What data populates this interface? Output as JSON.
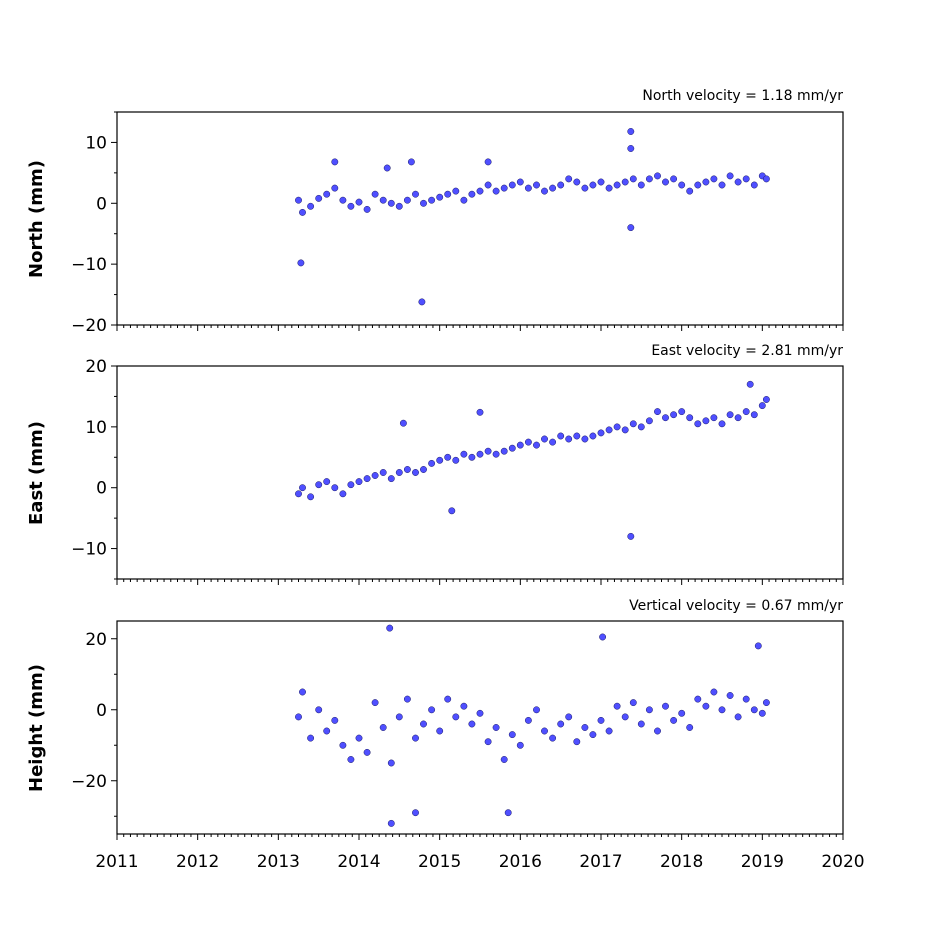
{
  "chart_data": [
    {
      "type": "scatter",
      "title": "North velocity = 1.18 mm/yr",
      "xlabel": "",
      "ylabel": "North (mm)",
      "xlim": [
        2011,
        2020
      ],
      "ylim": [
        -20,
        15
      ],
      "yticks": [
        -20,
        -10,
        0,
        10
      ],
      "xticks": [
        2011,
        2012,
        2013,
        2014,
        2015,
        2016,
        2017,
        2018,
        2019,
        2020
      ],
      "show_xtick_labels": false,
      "grid": false,
      "marker_color": "#4f4fff",
      "series": [
        {
          "x": [
            2013.25,
            2013.3,
            2013.4,
            2013.5,
            2013.6,
            2013.7,
            2013.8,
            2013.9,
            2014.0,
            2014.1,
            2014.2,
            2014.3,
            2014.4,
            2014.5,
            2014.6,
            2014.7,
            2014.8,
            2014.9,
            2015.0,
            2015.1,
            2015.2,
            2015.3,
            2015.4,
            2015.5,
            2015.6,
            2015.7,
            2015.8,
            2015.9,
            2016.0,
            2016.1,
            2016.2,
            2016.3,
            2016.4,
            2016.5,
            2016.6,
            2016.7,
            2016.8,
            2016.9,
            2017.0,
            2017.1,
            2017.2,
            2017.3,
            2017.4,
            2017.5,
            2017.6,
            2017.7,
            2017.8,
            2017.9,
            2018.0,
            2018.1,
            2018.2,
            2018.3,
            2018.4,
            2018.5,
            2018.6,
            2018.7,
            2018.8,
            2018.9,
            2019.0,
            2019.05,
            2013.28,
            2014.78,
            2017.37,
            2017.37,
            2013.7,
            2014.35,
            2014.65,
            2015.6,
            2017.37
          ],
          "y": [
            0.5,
            -1.5,
            -0.5,
            0.8,
            1.5,
            2.5,
            0.5,
            -0.5,
            0.2,
            -1.0,
            1.5,
            0.5,
            0.0,
            -0.5,
            0.5,
            1.5,
            0.0,
            0.5,
            1.0,
            1.5,
            2.0,
            0.5,
            1.5,
            2.0,
            3.0,
            2.0,
            2.5,
            3.0,
            3.5,
            2.5,
            3.0,
            2.0,
            2.5,
            3.0,
            4.0,
            3.5,
            2.5,
            3.0,
            3.5,
            2.5,
            3.0,
            3.5,
            4.0,
            3.0,
            4.0,
            4.5,
            3.5,
            4.0,
            3.0,
            2.0,
            3.0,
            3.5,
            4.0,
            3.0,
            4.5,
            3.5,
            4.0,
            3.0,
            4.5,
            4.0,
            -9.8,
            -16.2,
            11.8,
            9.0,
            6.8,
            5.8,
            6.8,
            6.8,
            -4.0
          ]
        }
      ]
    },
    {
      "type": "scatter",
      "title": "East velocity = 2.81 mm/yr",
      "xlabel": "",
      "ylabel": "East (mm)",
      "xlim": [
        2011,
        2020
      ],
      "ylim": [
        -15,
        20
      ],
      "yticks": [
        -10,
        0,
        10,
        20
      ],
      "xticks": [
        2011,
        2012,
        2013,
        2014,
        2015,
        2016,
        2017,
        2018,
        2019,
        2020
      ],
      "show_xtick_labels": false,
      "grid": false,
      "marker_color": "#4f4fff",
      "series": [
        {
          "x": [
            2013.25,
            2013.3,
            2013.4,
            2013.5,
            2013.6,
            2013.7,
            2013.8,
            2013.9,
            2014.0,
            2014.1,
            2014.2,
            2014.3,
            2014.4,
            2014.5,
            2014.6,
            2014.7,
            2014.8,
            2014.9,
            2015.0,
            2015.1,
            2015.2,
            2015.3,
            2015.4,
            2015.5,
            2015.6,
            2015.7,
            2015.8,
            2015.9,
            2016.0,
            2016.1,
            2016.2,
            2016.3,
            2016.4,
            2016.5,
            2016.6,
            2016.7,
            2016.8,
            2016.9,
            2017.0,
            2017.1,
            2017.2,
            2017.3,
            2017.4,
            2017.5,
            2017.6,
            2017.7,
            2017.8,
            2017.9,
            2018.0,
            2018.1,
            2018.2,
            2018.3,
            2018.4,
            2018.5,
            2018.6,
            2018.7,
            2018.8,
            2018.9,
            2019.0,
            2019.05,
            2017.37,
            2015.15,
            2014.55,
            2015.5,
            2018.85
          ],
          "y": [
            -1.0,
            0.0,
            -1.5,
            0.5,
            1.0,
            0.0,
            -1.0,
            0.5,
            1.0,
            1.5,
            2.0,
            2.5,
            1.5,
            2.5,
            3.0,
            2.5,
            3.0,
            4.0,
            4.5,
            5.0,
            4.5,
            5.5,
            5.0,
            5.5,
            6.0,
            5.5,
            6.0,
            6.5,
            7.0,
            7.5,
            7.0,
            8.0,
            7.5,
            8.5,
            8.0,
            8.5,
            8.0,
            8.5,
            9.0,
            9.5,
            10.0,
            9.5,
            10.5,
            10.0,
            11.0,
            12.5,
            11.5,
            12.0,
            12.5,
            11.5,
            10.5,
            11.0,
            11.5,
            10.5,
            12.0,
            11.5,
            12.5,
            12.0,
            13.5,
            14.5,
            -8.0,
            -3.8,
            10.6,
            12.4,
            17.0
          ]
        }
      ]
    },
    {
      "type": "scatter",
      "title": "Vertical velocity = 0.67 mm/yr",
      "xlabel": "",
      "ylabel": "Height (mm)",
      "xlim": [
        2011,
        2020
      ],
      "ylim": [
        -35,
        25
      ],
      "yticks": [
        -20,
        0,
        20
      ],
      "xticks": [
        2011,
        2012,
        2013,
        2014,
        2015,
        2016,
        2017,
        2018,
        2019,
        2020
      ],
      "show_xtick_labels": true,
      "grid": false,
      "marker_color": "#4f4fff",
      "series": [
        {
          "x": [
            2013.25,
            2013.3,
            2013.4,
            2013.5,
            2013.6,
            2013.7,
            2013.8,
            2013.9,
            2014.0,
            2014.1,
            2014.2,
            2014.3,
            2014.4,
            2014.5,
            2014.6,
            2014.7,
            2014.8,
            2014.9,
            2015.0,
            2015.1,
            2015.2,
            2015.3,
            2015.4,
            2015.5,
            2015.6,
            2015.7,
            2015.8,
            2015.9,
            2016.0,
            2016.1,
            2016.2,
            2016.3,
            2016.4,
            2016.5,
            2016.6,
            2016.7,
            2016.8,
            2016.9,
            2017.0,
            2017.1,
            2017.2,
            2017.3,
            2017.4,
            2017.5,
            2017.6,
            2017.7,
            2017.8,
            2017.9,
            2018.0,
            2018.1,
            2018.2,
            2018.3,
            2018.4,
            2018.5,
            2018.6,
            2018.7,
            2018.8,
            2018.9,
            2019.0,
            2019.05,
            2014.38,
            2014.4,
            2017.02,
            2014.7,
            2015.85,
            2018.95
          ],
          "y": [
            -2.0,
            5.0,
            -8.0,
            0.0,
            -6.0,
            -3.0,
            -10.0,
            -14.0,
            -8.0,
            -12.0,
            2.0,
            -5.0,
            -15.0,
            -2.0,
            3.0,
            -8.0,
            -4.0,
            0.0,
            -6.0,
            3.0,
            -2.0,
            1.0,
            -4.0,
            -1.0,
            -9.0,
            -5.0,
            -14.0,
            -7.0,
            -10.0,
            -3.0,
            0.0,
            -6.0,
            -8.0,
            -4.0,
            -2.0,
            -9.0,
            -5.0,
            -7.0,
            -3.0,
            -6.0,
            1.0,
            -2.0,
            2.0,
            -4.0,
            0.0,
            -6.0,
            1.0,
            -3.0,
            -1.0,
            -5.0,
            3.0,
            1.0,
            5.0,
            0.0,
            4.0,
            -2.0,
            3.0,
            0.0,
            -1.0,
            2.0,
            23.0,
            -32.0,
            20.5,
            -29.0,
            -29.0,
            18.0
          ]
        }
      ]
    }
  ],
  "x_tick_labels": [
    "2011",
    "2012",
    "2013",
    "2014",
    "2015",
    "2016",
    "2017",
    "2018",
    "2019",
    "2020"
  ]
}
